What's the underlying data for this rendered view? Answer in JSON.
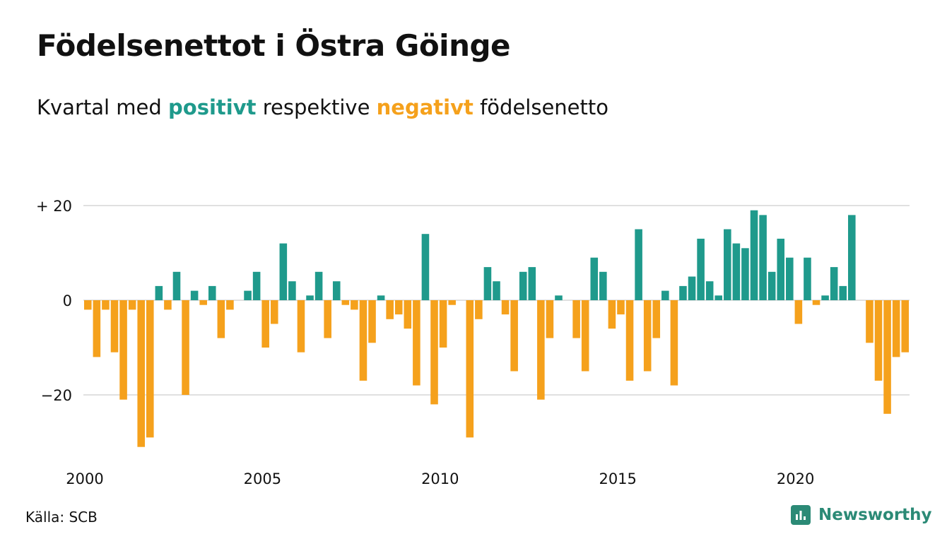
{
  "title": "Födelsenettot i Östra Göinge",
  "subtitle": {
    "prefix": "Kvartal med",
    "positive": "positivt",
    "middle": "respektive",
    "negative": "negativt",
    "suffix": "födelsenetto"
  },
  "source": "Källa: SCB",
  "brand": {
    "name": "Newsworthy"
  },
  "colors": {
    "positive": "#1f9a8c",
    "negative": "#f5a11c",
    "grid": "#e0e0e0",
    "brand": "#2b8a76"
  },
  "chart_data": {
    "type": "bar",
    "title": "Födelsenettot i Östra Göinge",
    "xlabel": "",
    "ylabel": "",
    "x_start": "2000-Q1",
    "frequency": "quarter",
    "ylim": [
      -35,
      22
    ],
    "yticks": [
      {
        "value": 20,
        "label": "+ 20"
      },
      {
        "value": 0,
        "label": "0"
      },
      {
        "value": -20,
        "label": "−20"
      }
    ],
    "xticks": [
      {
        "index": 0,
        "label": "2000"
      },
      {
        "index": 20,
        "label": "2005"
      },
      {
        "index": 40,
        "label": "2010"
      },
      {
        "index": 60,
        "label": "2015"
      },
      {
        "index": 80,
        "label": "2020"
      }
    ],
    "grid": true,
    "values": [
      -2,
      -12,
      -2,
      -11,
      -21,
      -2,
      -31,
      -29,
      3,
      -2,
      6,
      -20,
      2,
      -1,
      3,
      -8,
      -2,
      0,
      2,
      6,
      -10,
      -5,
      12,
      4,
      -11,
      1,
      6,
      -8,
      4,
      -1,
      -2,
      -17,
      -9,
      1,
      -4,
      -3,
      -6,
      -18,
      14,
      -22,
      -10,
      -1,
      0,
      -29,
      -4,
      7,
      4,
      -3,
      -15,
      6,
      7,
      -21,
      -8,
      1,
      0,
      -8,
      -15,
      9,
      6,
      -6,
      -3,
      -17,
      15,
      -15,
      -8,
      2,
      -18,
      3,
      5,
      13,
      4,
      1,
      15,
      12,
      11,
      19,
      18,
      6,
      13,
      9,
      -5,
      9,
      -1,
      1,
      7,
      3,
      18,
      0,
      -9,
      -17,
      -24,
      -12,
      -11
    ]
  }
}
